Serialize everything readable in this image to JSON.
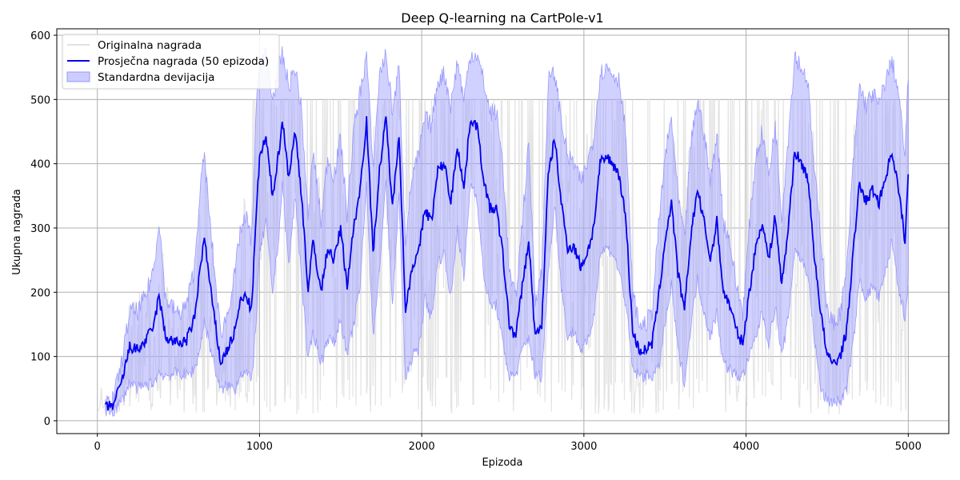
{
  "chart_data": {
    "type": "line",
    "title": "Deep Q-learning na CartPole-v1",
    "xlabel": "Epizoda",
    "ylabel": "Ukupna nagrada",
    "xlim": [
      -250,
      5250
    ],
    "ylim": [
      -20,
      610
    ],
    "xticks": [
      0,
      1000,
      2000,
      3000,
      4000,
      5000
    ],
    "yticks": [
      0,
      100,
      200,
      300,
      400,
      500,
      600
    ],
    "grid": true,
    "legend_position": "top-left",
    "colors": {
      "original": "#d9d9d9",
      "mean": "#0000ee",
      "band": "#9999ff"
    },
    "series": [
      {
        "name": "Originalna nagrada",
        "role": "raw",
        "note_scale": "per-episode reward, noisy between ~10 and 500"
      },
      {
        "name": "Prosječna nagrada (50 epizoda)",
        "role": "mean",
        "x": [
          50,
          100,
          150,
          200,
          250,
          300,
          350,
          380,
          420,
          500,
          550,
          600,
          630,
          660,
          700,
          760,
          800,
          850,
          880,
          920,
          950,
          980,
          1000,
          1040,
          1080,
          1120,
          1140,
          1180,
          1220,
          1260,
          1300,
          1330,
          1380,
          1420,
          1460,
          1500,
          1540,
          1580,
          1620,
          1660,
          1700,
          1740,
          1780,
          1820,
          1860,
          1900,
          1940,
          1980,
          2020,
          2060,
          2100,
          2140,
          2180,
          2220,
          2260,
          2300,
          2340,
          2380,
          2420,
          2460,
          2500,
          2540,
          2580,
          2620,
          2660,
          2700,
          2740,
          2780,
          2820,
          2860,
          2900,
          2940,
          2980,
          3020,
          3060,
          3100,
          3140,
          3180,
          3220,
          3260,
          3300,
          3340,
          3380,
          3420,
          3460,
          3500,
          3540,
          3580,
          3620,
          3660,
          3700,
          3740,
          3780,
          3820,
          3860,
          3900,
          3940,
          3980,
          4020,
          4060,
          4100,
          4140,
          4180,
          4220,
          4260,
          4300,
          4340,
          4380,
          4420,
          4460,
          4500,
          4540,
          4580,
          4620,
          4660,
          4700,
          4740,
          4780,
          4820,
          4860,
          4900,
          4940,
          4980,
          5000
        ],
        "values": [
          20,
          25,
          60,
          115,
          110,
          125,
          150,
          195,
          130,
          120,
          125,
          160,
          230,
          285,
          200,
          90,
          110,
          140,
          185,
          195,
          170,
          320,
          410,
          440,
          350,
          420,
          470,
          380,
          450,
          350,
          200,
          280,
          200,
          270,
          250,
          300,
          210,
          300,
          360,
          470,
          260,
          390,
          470,
          330,
          450,
          170,
          240,
          260,
          330,
          310,
          390,
          400,
          340,
          430,
          360,
          470,
          460,
          380,
          330,
          330,
          260,
          150,
          130,
          210,
          280,
          130,
          150,
          380,
          440,
          340,
          270,
          270,
          240,
          260,
          300,
          400,
          410,
          400,
          380,
          310,
          140,
          110,
          110,
          120,
          190,
          280,
          340,
          230,
          170,
          290,
          360,
          310,
          250,
          310,
          200,
          180,
          140,
          120,
          200,
          270,
          310,
          250,
          320,
          210,
          300,
          420,
          400,
          380,
          260,
          170,
          100,
          90,
          100,
          140,
          260,
          370,
          340,
          360,
          340,
          380,
          420,
          360,
          280,
          380
        ]
      },
      {
        "name": "Standardna devijacija",
        "role": "band",
        "half_width": [
          5,
          10,
          30,
          55,
          60,
          70,
          90,
          120,
          60,
          45,
          55,
          80,
          120,
          130,
          90,
          45,
          55,
          90,
          110,
          120,
          110,
          160,
          150,
          130,
          150,
          130,
          100,
          140,
          100,
          130,
          110,
          140,
          110,
          140,
          130,
          140,
          110,
          150,
          150,
          100,
          130,
          150,
          100,
          150,
          100,
          110,
          140,
          150,
          140,
          150,
          140,
          140,
          150,
          130,
          140,
          100,
          110,
          150,
          150,
          150,
          140,
          80,
          60,
          100,
          150,
          60,
          80,
          150,
          100,
          130,
          140,
          130,
          130,
          140,
          140,
          140,
          140,
          140,
          150,
          130,
          60,
          40,
          40,
          50,
          110,
          130,
          130,
          120,
          110,
          140,
          140,
          140,
          120,
          140,
          110,
          100,
          70,
          50,
          100,
          140,
          140,
          130,
          140,
          110,
          140,
          150,
          150,
          150,
          130,
          120,
          70,
          60,
          70,
          90,
          140,
          150,
          150,
          150,
          150,
          150,
          140,
          150,
          130,
          160
        ]
      }
    ]
  }
}
